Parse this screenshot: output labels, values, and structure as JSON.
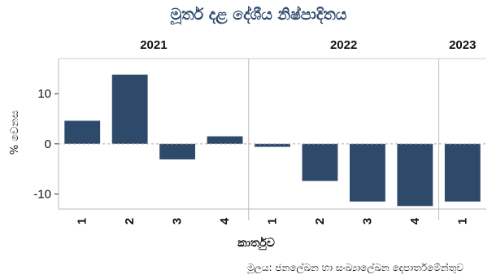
{
  "chart_data": {
    "type": "bar",
    "title": "මූර්ත දළ දේශීය නිෂ්පාදිතය",
    "ylabel": "% වෙනස",
    "xlabel": "කාර්තුව",
    "source": "මූලය: ජනලේඛන හා සංඛ්‍යාලේඛන දෙපාර්තමේන්තුව",
    "categories": [
      "1",
      "2",
      "3",
      "4",
      "1",
      "2",
      "3",
      "4",
      "1"
    ],
    "values": [
      4.6,
      13.8,
      -3.1,
      1.5,
      -0.6,
      -7.4,
      -11.5,
      -12.4,
      -11.5
    ],
    "years": [
      {
        "label": "2021",
        "start": 0,
        "end": 3
      },
      {
        "label": "2022",
        "start": 4,
        "end": 7
      },
      {
        "label": "2023",
        "start": 8,
        "end": 8
      }
    ],
    "yticks": [
      10,
      0,
      -10
    ],
    "ylim": [
      -13,
      17
    ],
    "bar_color": "#2e4a6b",
    "zero_line_color": "#c8a0a0",
    "grid": false,
    "legend": "none"
  }
}
